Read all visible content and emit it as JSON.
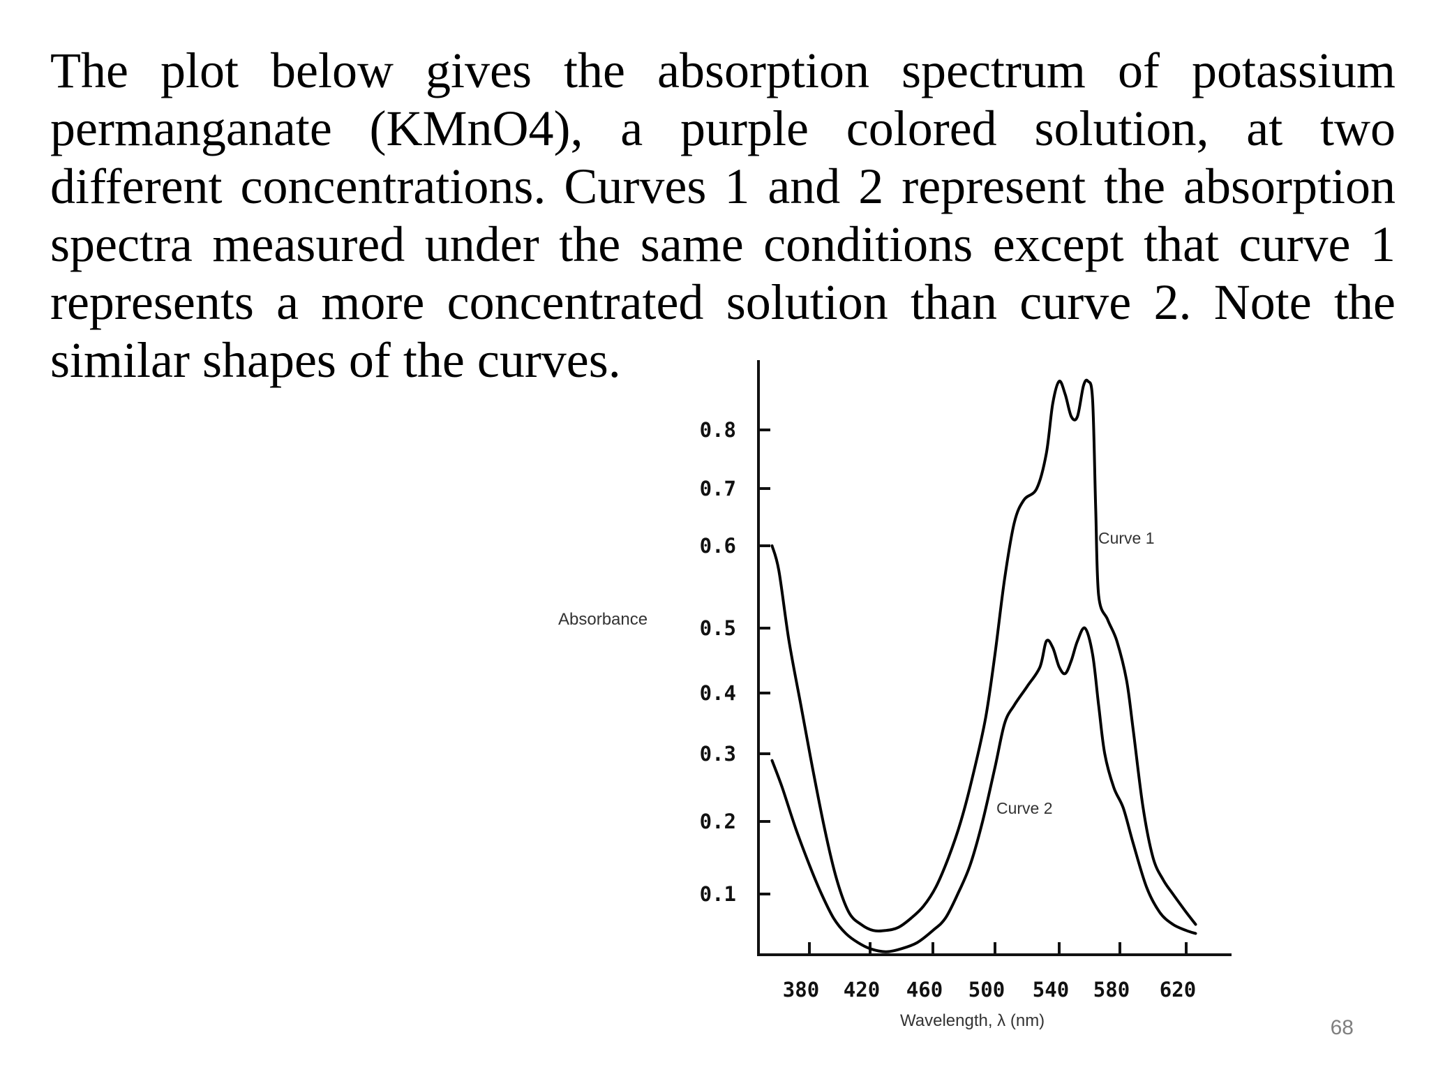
{
  "intro_text": "The plot below gives the absorption spectrum of potassium permanganate (KMnO4), a purple colored solution, at two different concentrations. Curves 1 and 2 represent the absorption spectra measured under the same conditions except that curve 1 represents a more concentrated solution than curve 2. Note the similar shapes of the curves.",
  "slide_number": "68",
  "chart_data": {
    "type": "line",
    "title": "",
    "xlabel": "Wavelength, λ (nm)",
    "ylabel": "Absorbance",
    "x_ticks": [
      "380",
      "420",
      "460",
      "500",
      "540",
      "580",
      "620"
    ],
    "y_ticks": [
      "0.1",
      "0.2",
      "0.3",
      "0.4",
      "0.5",
      "0.6",
      "0.7",
      "0.8"
    ],
    "xlim": [
      350,
      640
    ],
    "grid": false,
    "colors": {
      "line": "#000000",
      "text": "#333333"
    },
    "series": [
      {
        "name": "Curve 1",
        "points": [
          [
            358,
            0.6
          ],
          [
            362,
            0.57
          ],
          [
            368,
            0.48
          ],
          [
            375,
            0.38
          ],
          [
            382,
            0.28
          ],
          [
            390,
            0.19
          ],
          [
            398,
            0.12
          ],
          [
            406,
            0.07
          ],
          [
            414,
            0.05
          ],
          [
            422,
            0.04
          ],
          [
            430,
            0.04
          ],
          [
            438,
            0.045
          ],
          [
            446,
            0.06
          ],
          [
            454,
            0.08
          ],
          [
            462,
            0.11
          ],
          [
            470,
            0.15
          ],
          [
            478,
            0.2
          ],
          [
            486,
            0.27
          ],
          [
            494,
            0.36
          ],
          [
            500,
            0.46
          ],
          [
            506,
            0.56
          ],
          [
            512,
            0.64
          ],
          [
            518,
            0.68
          ],
          [
            526,
            0.7
          ],
          [
            532,
            0.76
          ],
          [
            536,
            0.86
          ],
          [
            540,
            0.91
          ],
          [
            544,
            0.88
          ],
          [
            548,
            0.83
          ],
          [
            552,
            0.83
          ],
          [
            556,
            0.9
          ],
          [
            559,
            0.91
          ],
          [
            562,
            0.87
          ],
          [
            564,
            0.67
          ],
          [
            566,
            0.54
          ],
          [
            572,
            0.51
          ],
          [
            578,
            0.48
          ],
          [
            584,
            0.42
          ],
          [
            588,
            0.34
          ],
          [
            594,
            0.22
          ],
          [
            600,
            0.15
          ],
          [
            606,
            0.12
          ],
          [
            612,
            0.1
          ],
          [
            620,
            0.07
          ],
          [
            626,
            0.05
          ]
        ]
      },
      {
        "name": "Curve 2",
        "points": [
          [
            358,
            0.29
          ],
          [
            364,
            0.25
          ],
          [
            372,
            0.19
          ],
          [
            380,
            0.14
          ],
          [
            388,
            0.1
          ],
          [
            396,
            0.06
          ],
          [
            404,
            0.035
          ],
          [
            412,
            0.02
          ],
          [
            420,
            0.01
          ],
          [
            430,
            0.005
          ],
          [
            440,
            0.01
          ],
          [
            450,
            0.02
          ],
          [
            460,
            0.04
          ],
          [
            468,
            0.06
          ],
          [
            476,
            0.1
          ],
          [
            484,
            0.14
          ],
          [
            492,
            0.2
          ],
          [
            500,
            0.28
          ],
          [
            506,
            0.35
          ],
          [
            512,
            0.38
          ],
          [
            520,
            0.41
          ],
          [
            528,
            0.44
          ],
          [
            532,
            0.48
          ],
          [
            536,
            0.47
          ],
          [
            540,
            0.44
          ],
          [
            544,
            0.43
          ],
          [
            548,
            0.45
          ],
          [
            552,
            0.48
          ],
          [
            557,
            0.5
          ],
          [
            562,
            0.46
          ],
          [
            566,
            0.38
          ],
          [
            570,
            0.3
          ],
          [
            576,
            0.25
          ],
          [
            582,
            0.22
          ],
          [
            588,
            0.17
          ],
          [
            596,
            0.11
          ],
          [
            604,
            0.07
          ],
          [
            612,
            0.05
          ],
          [
            620,
            0.04
          ],
          [
            626,
            0.035
          ]
        ]
      }
    ]
  }
}
